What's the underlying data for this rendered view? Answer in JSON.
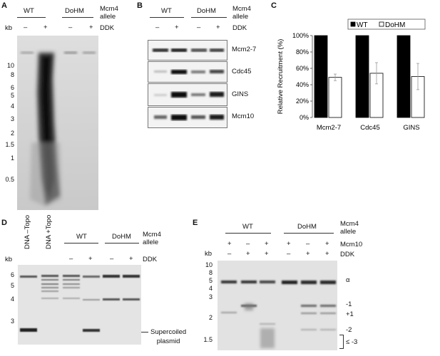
{
  "panelA": {
    "letter": "A",
    "groups": [
      "WT",
      "DoHM"
    ],
    "allele_label_1": "Mcm4",
    "allele_label_2": "allele",
    "kb_label": "kb",
    "ddk_label": "DDK",
    "lane_signs": [
      "–",
      "+",
      "–",
      "+"
    ],
    "ticks": [
      "10",
      "8",
      "6",
      "5",
      "4",
      "3",
      "2",
      "1.5",
      "1",
      "0.5"
    ]
  },
  "panelB": {
    "letter": "B",
    "groups": [
      "WT",
      "DoHM"
    ],
    "allele_label_1": "Mcm4",
    "allele_label_2": "allele",
    "ddk_label": "DDK",
    "lane_signs": [
      "–",
      "+",
      "–",
      "+"
    ],
    "blots": [
      "Mcm2-7",
      "Cdc45",
      "GINS",
      "Mcm10"
    ]
  },
  "panelC": {
    "letter": "C",
    "chart_data": {
      "type": "bar",
      "categories": [
        "Mcm2-7",
        "Cdc45",
        "GINS"
      ],
      "series": [
        {
          "name": "WT",
          "values": [
            100,
            100,
            100
          ],
          "color": "#000000"
        },
        {
          "name": "DoHM",
          "values": [
            49,
            54,
            50
          ],
          "errors": [
            4,
            13,
            16
          ],
          "color": "#ffffff"
        }
      ],
      "ylabel": "Relative Recruitment (%)",
      "ylim": [
        0,
        100
      ],
      "yticks": [
        "0%",
        "20%",
        "40%",
        "60%",
        "80%",
        "100%"
      ],
      "legend": "top",
      "grid": false
    }
  },
  "panelD": {
    "letter": "D",
    "groups": [
      "WT",
      "DoHM"
    ],
    "allele_label_1": "Mcm4",
    "allele_label_2": "allele",
    "kb_label": "kb",
    "ddk_label": "DDK",
    "control_lanes": [
      "DNA –Topo",
      "DNA +Topo"
    ],
    "lane_signs": [
      "–",
      "+",
      "–",
      "+"
    ],
    "ticks": [
      "6",
      "5",
      "4",
      "3"
    ],
    "annotation_1": "Supercoiled",
    "annotation_2": "plasmid"
  },
  "panelE": {
    "letter": "E",
    "groups": [
      "WT",
      "DoHM"
    ],
    "allele_label_1": "Mcm4",
    "allele_label_2": "allele",
    "kb_label": "kb",
    "mcm10_label": "Mcm10",
    "ddk_label": "DDK",
    "mcm10_signs": [
      "+",
      "–",
      "+",
      "+",
      "–",
      "+"
    ],
    "ddk_signs": [
      "–",
      "+",
      "+",
      "–",
      "+",
      "+"
    ],
    "ticks": [
      "10",
      "8",
      "5",
      "4",
      "3",
      "2",
      "1.5"
    ],
    "topo_labels": [
      "α",
      "-1",
      "+1",
      "-2",
      "≤ -3"
    ]
  }
}
